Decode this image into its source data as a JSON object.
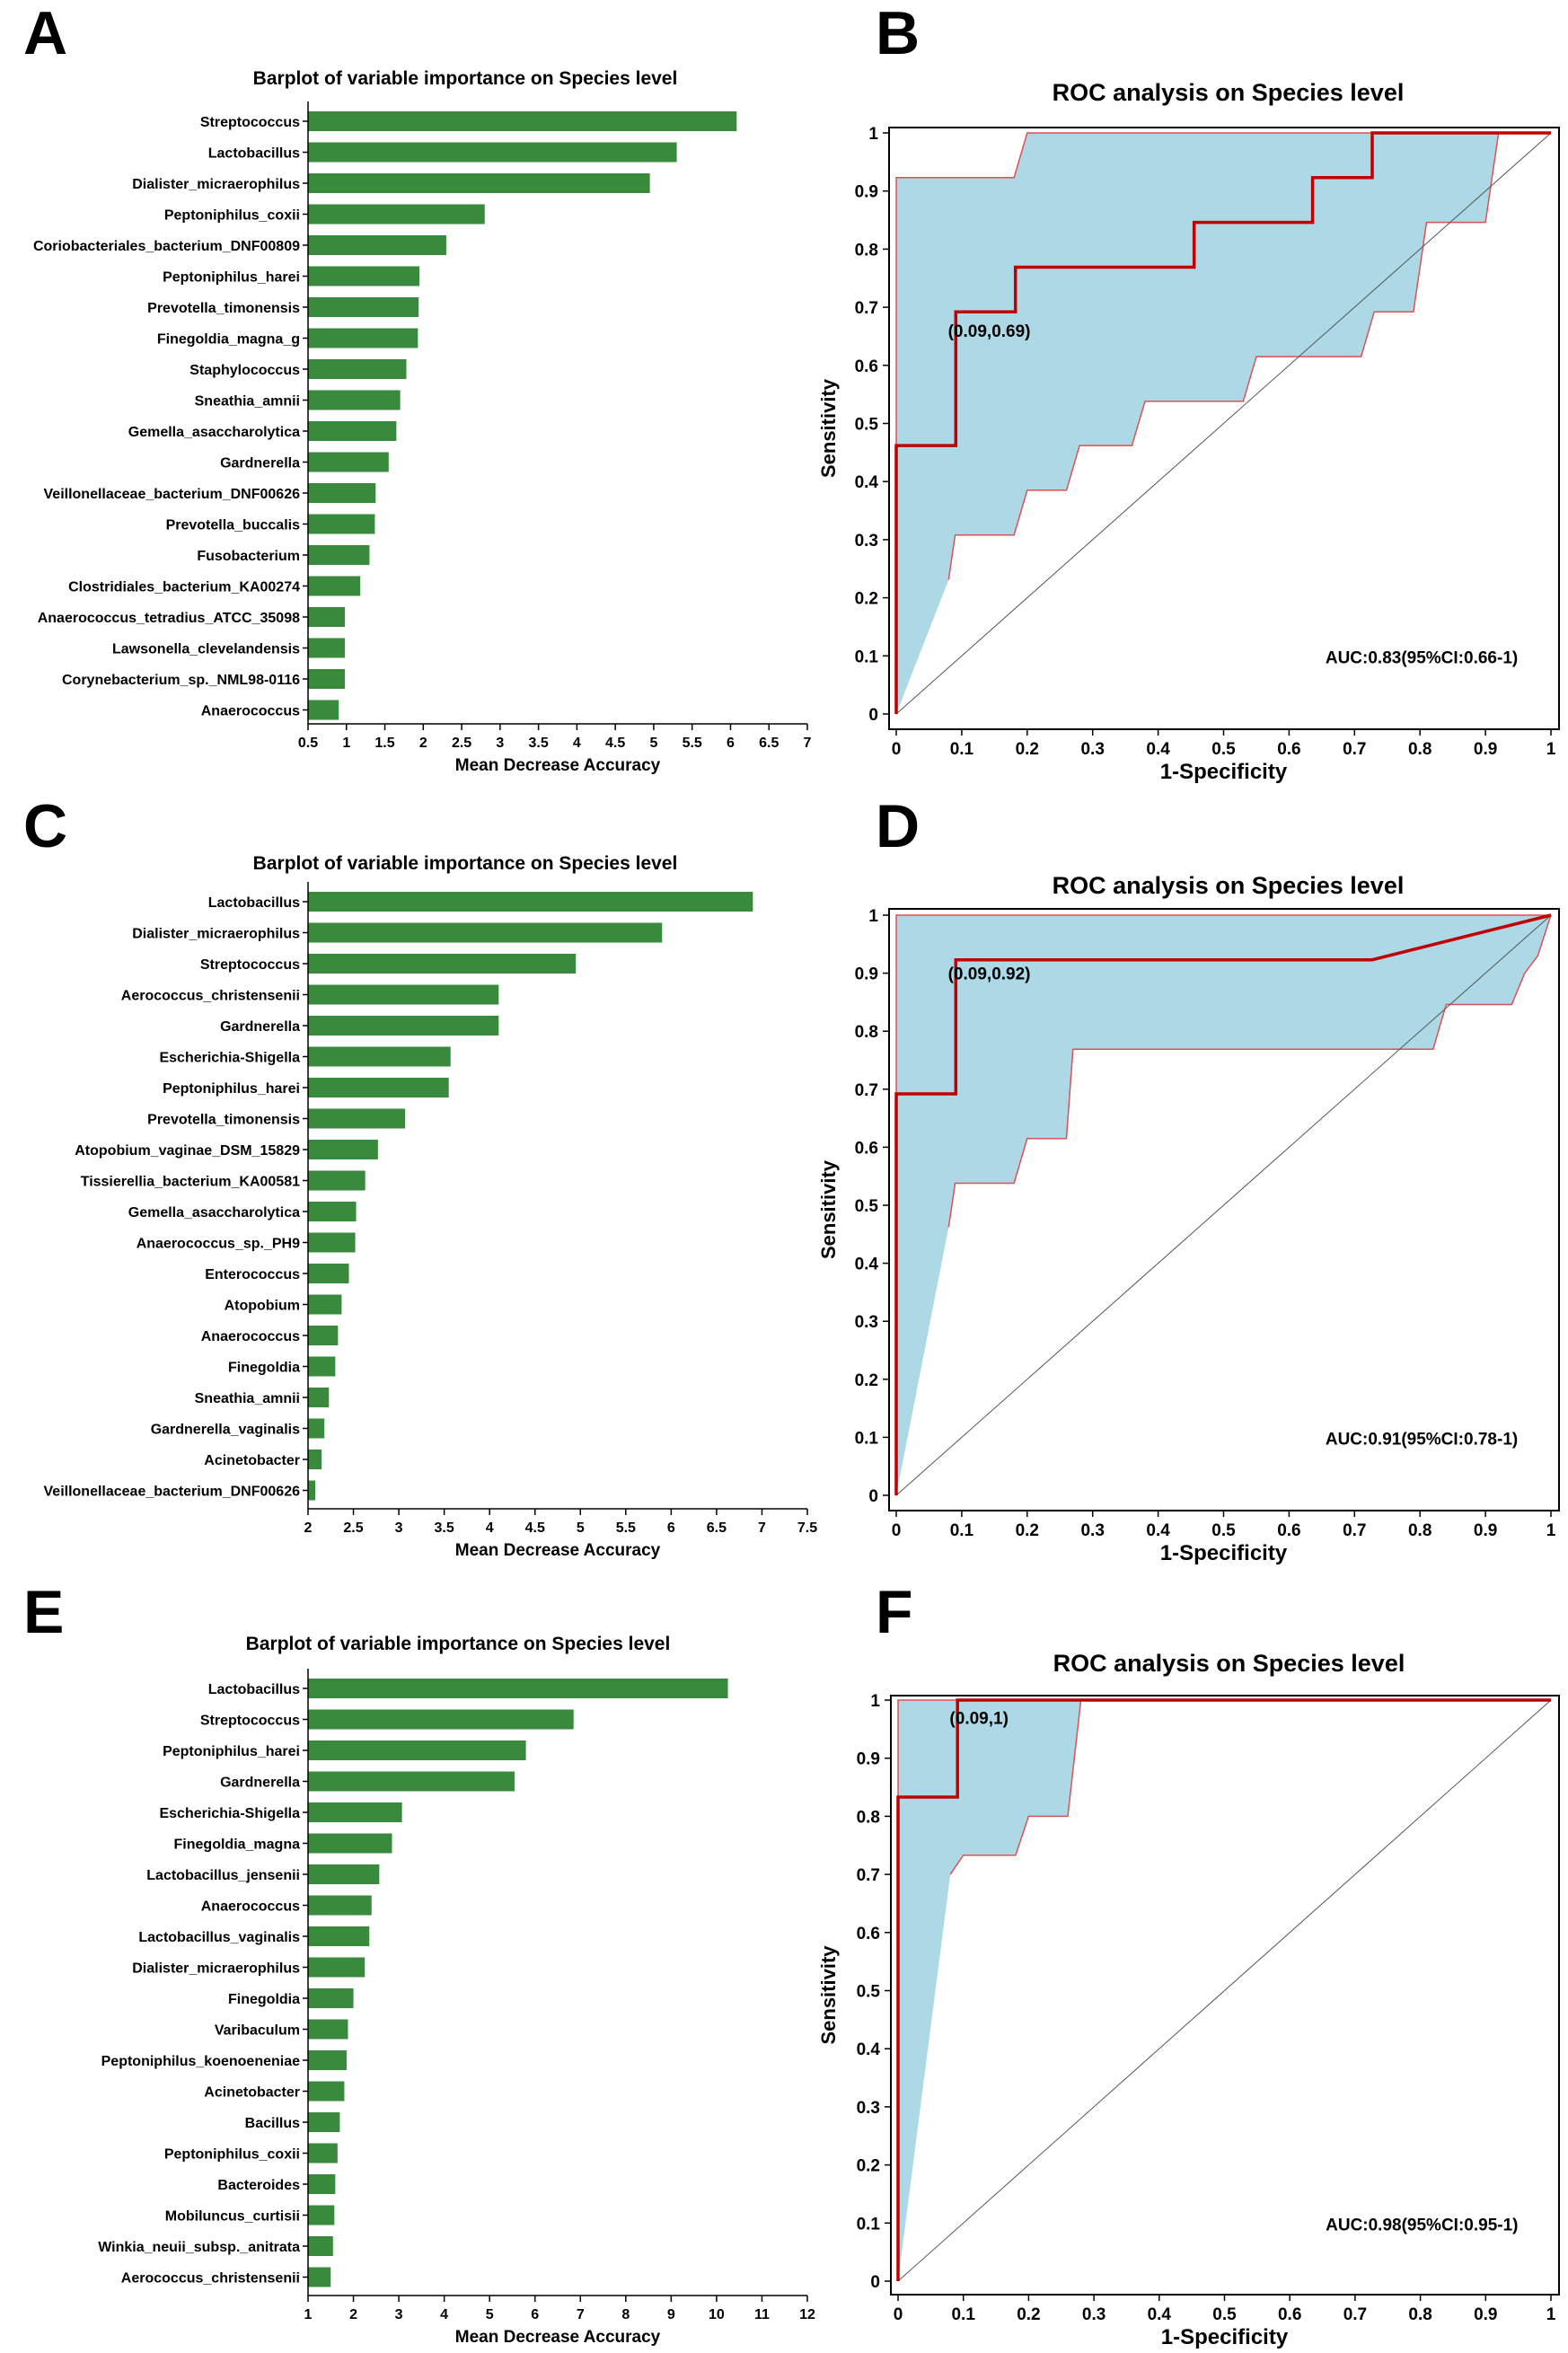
{
  "panel_labels": [
    "A",
    "B",
    "C",
    "D",
    "E",
    "F"
  ],
  "colors": {
    "bar": "#3a8a3e",
    "roc_line": "#c00000",
    "ci_fill": "#add8e6",
    "ci_edge": "#e05050",
    "diagonal": "#555555",
    "axis": "#000000"
  },
  "chart_data": [
    {
      "panel": "A",
      "type": "bar",
      "orientation": "horizontal",
      "title": "Barplot of variable importance on Species level",
      "xlabel": "Mean Decrease Accuracy",
      "xlim": [
        0.5,
        7
      ],
      "xticks": [
        0.5,
        1,
        1.5,
        2,
        2.5,
        3,
        3.5,
        4,
        4.5,
        5,
        5.5,
        6,
        6.5,
        7
      ],
      "categories": [
        "Streptococcus",
        "Lactobacillus",
        "Dialister_micraerophilus",
        "Peptoniphilus_coxii",
        "Coriobacteriales_bacterium_DNF00809",
        "Peptoniphilus_harei",
        "Prevotella_timonensis",
        "Finegoldia_magna_g",
        "Staphylococcus",
        "Sneathia_amnii",
        "Gemella_asaccharolytica",
        "Gardnerella",
        "Veillonellaceae_bacterium_DNF00626",
        "Prevotella_buccalis",
        "Fusobacterium",
        "Clostridiales_bacterium_KA00274",
        "Anaerococcus_tetradius_ATCC_35098",
        "Lawsonella_clevelandensis",
        "Corynebacterium_sp._NML98-0116",
        "Anaerococcus"
      ],
      "values": [
        6.08,
        5.3,
        4.95,
        2.8,
        2.3,
        1.95,
        1.94,
        1.93,
        1.78,
        1.7,
        1.65,
        1.55,
        1.38,
        1.37,
        1.3,
        1.18,
        0.98,
        0.98,
        0.98,
        0.9
      ]
    },
    {
      "panel": "B",
      "type": "line",
      "title": "ROC analysis on Species level",
      "xlabel": "1-Specificity",
      "ylabel": "Sensitivity",
      "xlim": [
        0,
        1
      ],
      "ylim": [
        0,
        1
      ],
      "ticks": [
        "0",
        "0.1",
        "0.2",
        "0.3",
        "0.4",
        "0.5",
        "0.6",
        "0.7",
        "0.8",
        "0.9",
        "1"
      ],
      "roc": {
        "x": [
          0,
          0,
          0.091,
          0.091,
          0.182,
          0.182,
          0.455,
          0.455,
          0.636,
          0.636,
          0.727,
          0.727,
          1
        ],
        "y": [
          0,
          0.462,
          0.462,
          0.692,
          0.692,
          0.769,
          0.769,
          0.846,
          0.846,
          0.923,
          0.923,
          1,
          1
        ]
      },
      "ci_upper": {
        "x": [
          0,
          0,
          0.18,
          0.2,
          0.92
        ],
        "y": [
          0,
          0.923,
          0.923,
          1,
          1
        ]
      },
      "ci_lower": {
        "x": [
          0.08,
          0.09,
          0.18,
          0.2,
          0.26,
          0.28,
          0.36,
          0.38,
          0.53,
          0.55,
          0.71,
          0.73,
          0.79,
          0.81,
          0.9,
          0.92
        ],
        "y": [
          0.231,
          0.308,
          0.308,
          0.385,
          0.385,
          0.462,
          0.462,
          0.538,
          0.538,
          0.615,
          0.615,
          0.692,
          0.692,
          0.846,
          0.846,
          1
        ]
      },
      "annotation": {
        "text": "(0.09,0.69)",
        "x": 0.09,
        "y": 0.66
      },
      "auc_text": "AUC:0.83(95%CI:0.66-1)"
    },
    {
      "panel": "C",
      "type": "bar",
      "orientation": "horizontal",
      "title": "Barplot of variable importance on Species level",
      "xlabel": "Mean Decrease Accuracy",
      "xlim": [
        2,
        7.5
      ],
      "xticks": [
        2,
        2.5,
        3,
        3.5,
        4,
        4.5,
        5,
        5.5,
        6,
        6.5,
        7,
        7.5
      ],
      "categories": [
        "Lactobacillus",
        "Dialister_micraerophilus",
        "Streptococcus",
        "Aerococcus_christensenii",
        "Gardnerella",
        "Escherichia-Shigella",
        "Peptoniphilus_harei",
        "Prevotella_timonensis",
        "Atopobium_vaginae_DSM_15829",
        "Tissierellia_bacterium_KA00581",
        "Gemella_asaccharolytica",
        "Anaerococcus_sp._PH9",
        "Enterococcus",
        "Atopobium",
        "Anaerococcus",
        "Finegoldia",
        "Sneathia_amnii",
        "Gardnerella_vaginalis",
        "Acinetobacter",
        "Veillonellaceae_bacterium_DNF00626"
      ],
      "values": [
        6.9,
        5.9,
        4.95,
        4.1,
        4.1,
        3.57,
        3.55,
        3.07,
        2.77,
        2.63,
        2.53,
        2.52,
        2.45,
        2.37,
        2.33,
        2.3,
        2.23,
        2.18,
        2.15,
        2.08
      ]
    },
    {
      "panel": "D",
      "type": "line",
      "title": "ROC analysis on Species level",
      "xlabel": "1-Specificity",
      "ylabel": "Sensitivity",
      "xlim": [
        0,
        1
      ],
      "ylim": [
        0,
        1
      ],
      "ticks": [
        "0",
        "0.1",
        "0.2",
        "0.3",
        "0.4",
        "0.5",
        "0.6",
        "0.7",
        "0.8",
        "0.9",
        "1"
      ],
      "roc": {
        "x": [
          0,
          0,
          0.091,
          0.091,
          0.727,
          1
        ],
        "y": [
          0,
          0.692,
          0.692,
          0.923,
          0.923,
          1
        ]
      },
      "ci_upper": {
        "x": [
          0,
          0,
          1
        ],
        "y": [
          0,
          1,
          1
        ]
      },
      "ci_lower": {
        "x": [
          0.08,
          0.09,
          0.18,
          0.2,
          0.26,
          0.27,
          0.82,
          0.84,
          0.94,
          0.96,
          0.98,
          1
        ],
        "y": [
          0.462,
          0.538,
          0.538,
          0.615,
          0.615,
          0.769,
          0.769,
          0.846,
          0.846,
          0.9,
          0.93,
          1
        ]
      },
      "annotation": {
        "text": "(0.09,0.92)",
        "x": 0.09,
        "y": 0.9
      },
      "auc_text": "AUC:0.91(95%CI:0.78-1)"
    },
    {
      "panel": "E",
      "type": "bar",
      "orientation": "horizontal",
      "title": "Barplot of variable importance on Species level",
      "xlabel": "Mean Decrease Accuracy",
      "xlim": [
        1,
        12
      ],
      "xticks": [
        1,
        2,
        3,
        4,
        5,
        6,
        7,
        8,
        9,
        10,
        11,
        12
      ],
      "categories": [
        "Lactobacillus",
        "Streptococcus",
        "Peptoniphilus_harei",
        "Gardnerella",
        "Escherichia-Shigella",
        "Finegoldia_magna",
        "Lactobacillus_jensenii",
        "Anaerococcus",
        "Lactobacillus_vaginalis",
        "Dialister_micraerophilus",
        "Finegoldia",
        "Varibaculum",
        "Peptoniphilus_koenoeneniae",
        "Acinetobacter",
        "Bacillus",
        "Peptoniphilus_coxii",
        "Bacteroides",
        "Mobiluncus_curtisii",
        "Winkia_neuii_subsp._anitrata",
        "Aerococcus_christensenii"
      ],
      "values": [
        10.25,
        6.85,
        5.8,
        5.55,
        3.07,
        2.85,
        2.57,
        2.4,
        2.35,
        2.25,
        2.0,
        1.88,
        1.85,
        1.8,
        1.7,
        1.65,
        1.6,
        1.58,
        1.55,
        1.5
      ]
    },
    {
      "panel": "F",
      "type": "line",
      "title": "ROC analysis on Species level",
      "xlabel": "1-Specificity",
      "ylabel": "Sensitivity",
      "xlim": [
        0,
        1
      ],
      "ylim": [
        0,
        1
      ],
      "ticks": [
        "0",
        "0.1",
        "0.2",
        "0.3",
        "0.4",
        "0.5",
        "0.6",
        "0.7",
        "0.8",
        "0.9",
        "1"
      ],
      "roc": {
        "x": [
          0,
          0,
          0.091,
          0.091,
          1
        ],
        "y": [
          0,
          0.833,
          0.833,
          1,
          1
        ]
      },
      "ci_upper": {
        "x": [
          0,
          0,
          0.28,
          1
        ],
        "y": [
          0,
          1,
          1,
          1
        ]
      },
      "ci_lower": {
        "x": [
          0.08,
          0.1,
          0.18,
          0.2,
          0.26,
          0.28
        ],
        "y": [
          0.7,
          0.733,
          0.733,
          0.8,
          0.8,
          1
        ]
      },
      "annotation": {
        "text": "(0.09,1)",
        "x": 0.09,
        "y": 0.97
      },
      "auc_text": "AUC:0.98(95%CI:0.95-1)"
    }
  ]
}
